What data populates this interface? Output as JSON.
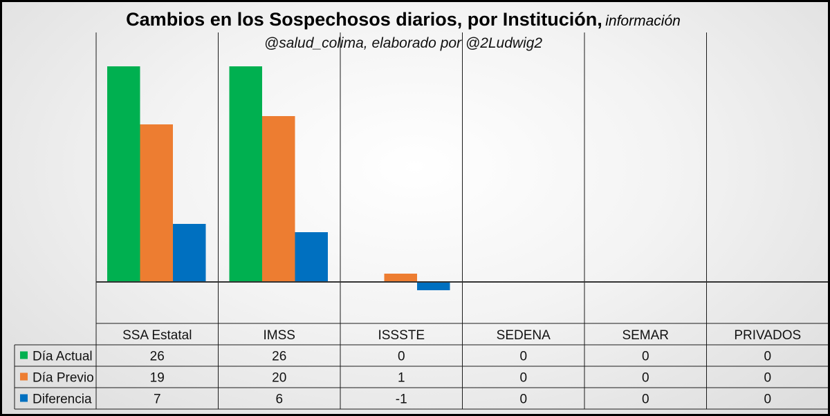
{
  "chart_data": {
    "type": "bar",
    "title": "Cambios en los Sospechosos diarios, por Institución,",
    "title_suffix": "información",
    "subtitle": "@salud_colima, elaborado por @2Ludwig2",
    "categories": [
      "SSA Estatal",
      "IMSS",
      "ISSSTE",
      "SEDENA",
      "SEMAR",
      "PRIVADOS"
    ],
    "series": [
      {
        "name": "Día Actual",
        "color": "#00b050",
        "values": [
          26,
          26,
          0,
          0,
          0,
          0
        ]
      },
      {
        "name": "Día Previo",
        "color": "#ed7d31",
        "values": [
          19,
          20,
          1,
          0,
          0,
          0
        ]
      },
      {
        "name": "Diferencia",
        "color": "#0070c0",
        "values": [
          7,
          6,
          -1,
          0,
          0,
          0
        ]
      }
    ],
    "ylim": [
      -2,
      28
    ],
    "grid": false,
    "legend": "data-table"
  }
}
